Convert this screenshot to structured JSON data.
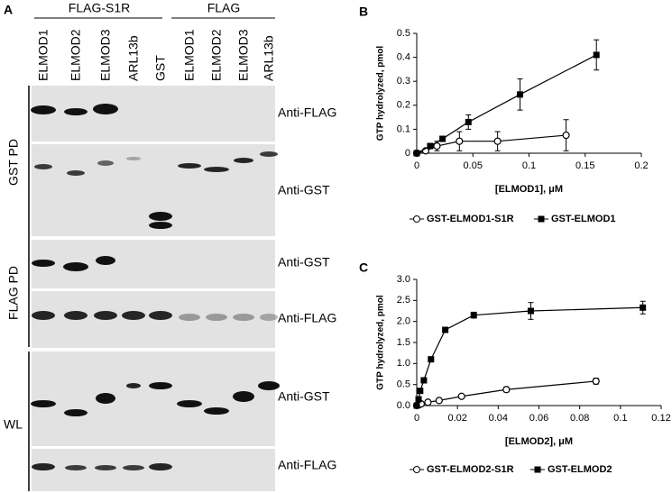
{
  "blot": {
    "panel_label": "A",
    "groups": [
      "FLAG-S1R",
      "FLAG"
    ],
    "lanes": [
      "ELMOD1",
      "ELMOD2",
      "ELMOD3",
      "ARL13b",
      "GST",
      "ELMOD1",
      "ELMOD2",
      "ELMOD3",
      "ARL13b"
    ],
    "sections": [
      "GST PD",
      "FLAG PD",
      "WL"
    ],
    "antibodies": [
      "Anti-FLAG",
      "Anti-GST",
      "Anti-GST",
      "Anti-FLAG",
      "Anti-GST",
      "Anti-FLAG"
    ]
  },
  "chart_data": [
    {
      "type": "scatter",
      "panel_label": "B",
      "x_label": "[ELMOD1], μM",
      "y_label": "GTP hydrolyzed, pmol",
      "xlim": [
        0,
        0.2
      ],
      "xticks": [
        0,
        0.05,
        0.1,
        0.15,
        0.2
      ],
      "ylim": [
        0,
        0.5
      ],
      "yticks": [
        0,
        0.1,
        0.2,
        0.3,
        0.4,
        0.5
      ],
      "series": [
        {
          "name": "GST-ELMOD1-S1R",
          "color": "#000000",
          "marker": "circle-open",
          "x": [
            0,
            0.008,
            0.018,
            0.038,
            0.072,
            0.133
          ],
          "values": [
            0,
            0.01,
            0.03,
            0.05,
            0.05,
            0.075
          ],
          "errors": [
            0,
            0.005,
            0.02,
            0.04,
            0.04,
            0.065
          ]
        },
        {
          "name": "GST-ELMOD1",
          "color": "#000000",
          "marker": "square",
          "x": [
            0,
            0.012,
            0.023,
            0.046,
            0.092,
            0.16
          ],
          "values": [
            0,
            0.03,
            0.06,
            0.13,
            0.245,
            0.41
          ],
          "errors": [
            0,
            0.005,
            0.01,
            0.03,
            0.065,
            0.063
          ]
        }
      ]
    },
    {
      "type": "scatter",
      "panel_label": "C",
      "x_label": "[ELMOD2], μM",
      "y_label": "GTP hydrolyzed, pmol",
      "xlim": [
        0,
        0.12
      ],
      "xticks": [
        0,
        0.02,
        0.04,
        0.06,
        0.08,
        0.1,
        0.12
      ],
      "ylim": [
        0,
        3
      ],
      "yticks": [
        {
          "value": 0,
          "label": "0.0"
        },
        0.5,
        {
          "value": 1,
          "label": "1.0"
        },
        1.5,
        {
          "value": 2,
          "label": "2.0"
        },
        2.5,
        {
          "value": 3,
          "label": "3.0"
        }
      ],
      "series": [
        {
          "name": "GST-ELMOD2-S1R",
          "color": "#000000",
          "marker": "circle-open",
          "x": [
            0,
            0.0011,
            0.0022,
            0.0055,
            0.011,
            0.022,
            0.044,
            0.088
          ],
          "values": [
            0,
            0.02,
            0.04,
            0.08,
            0.12,
            0.22,
            0.38,
            0.58
          ],
          "errors": [
            0,
            0.02,
            0.02,
            0.03,
            0.03,
            0.04,
            0.06,
            0.07
          ]
        },
        {
          "name": "GST-ELMOD2",
          "color": "#000000",
          "marker": "square",
          "x": [
            0,
            0.0009,
            0.0017,
            0.0035,
            0.007,
            0.014,
            0.028,
            0.056,
            0.111
          ],
          "values": [
            0,
            0.15,
            0.35,
            0.6,
            1.1,
            1.8,
            2.15,
            2.25,
            2.33
          ],
          "errors": [
            0,
            0.05,
            0.05,
            0.05,
            0.05,
            0.05,
            0.07,
            0.2,
            0.15
          ]
        }
      ]
    }
  ]
}
